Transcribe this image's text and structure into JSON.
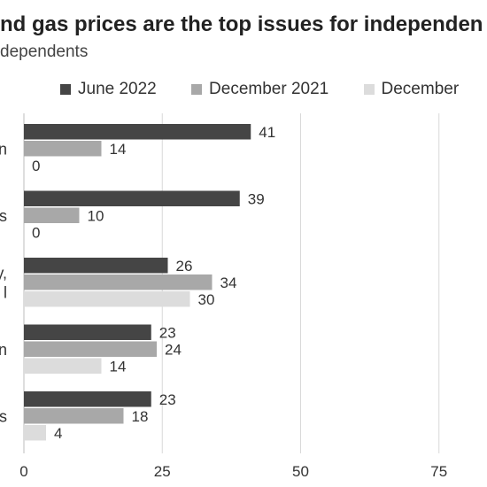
{
  "title": "nd gas prices are the top issues for independen",
  "subtitle": "dependents",
  "colors": {
    "series": [
      "#454545",
      "#a8a8a8",
      "#dcdcdc"
    ],
    "grid": "#d9d9d9",
    "text": "#333333"
  },
  "legend": [
    {
      "label": "June 2022",
      "color": "#454545"
    },
    {
      "label": "December 2021",
      "color": "#a8a8a8"
    },
    {
      "label": "December",
      "color": "#dcdcdc"
    }
  ],
  "chart_data": {
    "type": "bar",
    "orientation": "horizontal",
    "title": "nd gas prices are the top issues for independen",
    "subtitle": "dependents",
    "categories": [
      "n",
      "s",
      "y,\nl",
      "n",
      "s"
    ],
    "series": [
      {
        "name": "June 2022",
        "values": [
          41,
          39,
          26,
          23,
          23
        ]
      },
      {
        "name": "December 2021",
        "values": [
          14,
          10,
          34,
          24,
          18
        ]
      },
      {
        "name": "December",
        "values": [
          0,
          0,
          30,
          14,
          4
        ]
      }
    ],
    "xlim": [
      0,
      87
    ],
    "xticks": [
      0,
      25,
      50,
      75
    ],
    "grid": true,
    "legend_position": "top"
  }
}
